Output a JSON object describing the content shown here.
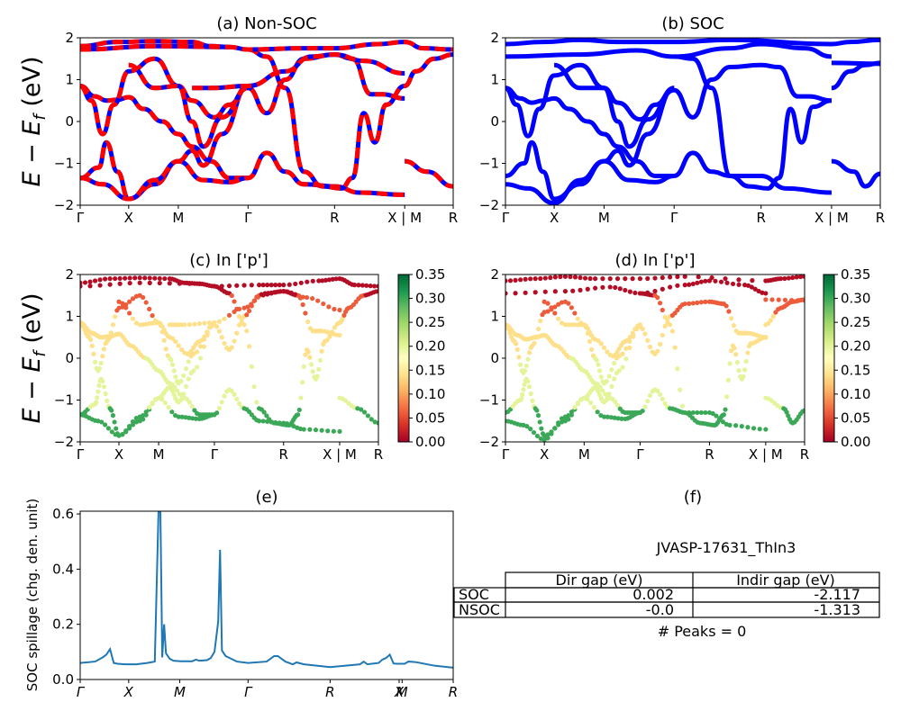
{
  "chart_data": [
    {
      "id": "a",
      "type": "line",
      "title": "(a) Non-SOC",
      "ylabel": "E − E_f (eV)",
      "ylim": [
        -2,
        2
      ],
      "yticks": [
        "−2",
        "−1",
        "0",
        "1",
        "2"
      ],
      "xticks": [
        "Γ",
        "X",
        "M",
        "Γ",
        "R",
        "X | M",
        "R"
      ],
      "xtick_pos": [
        0,
        0.13,
        0.263,
        0.45,
        0.682,
        0.87,
        1.0
      ],
      "style": "red line with blue dashes (overlaid)",
      "colors": {
        "primary": "#ff0000",
        "dash": "#0000ff"
      },
      "bands": [
        [
          [
            0,
            0.85
          ],
          [
            0.04,
            0.6
          ],
          [
            0.07,
            0.5
          ],
          [
            0.1,
            0.52
          ],
          [
            0.13,
            0.58
          ],
          [
            0.17,
            0.3
          ],
          [
            0.22,
            0.0
          ],
          [
            0.263,
            -0.3
          ],
          [
            0.3,
            -0.6
          ],
          [
            0.35,
            -0.95
          ],
          [
            0.4,
            -1.35
          ],
          [
            0.45,
            -1.35
          ]
        ],
        [
          [
            0,
            0.85
          ],
          [
            0.03,
            0.5
          ],
          [
            0.06,
            -0.3
          ],
          [
            0.09,
            0.4
          ],
          [
            0.13,
            1.2
          ],
          [
            0.2,
            1.5
          ],
          [
            0.263,
            0.85
          ],
          [
            0.3,
            0.5
          ],
          [
            0.36,
            0.1
          ],
          [
            0.4,
            0.4
          ],
          [
            0.45,
            0.85
          ]
        ],
        [
          [
            0,
            -1.35
          ],
          [
            0.05,
            -1.1
          ],
          [
            0.07,
            -0.5
          ],
          [
            0.1,
            -1.2
          ],
          [
            0.13,
            -1.85
          ],
          [
            0.2,
            -1.5
          ],
          [
            0.263,
            -0.95
          ],
          [
            0.3,
            -0.7
          ],
          [
            0.33,
            -1.05
          ],
          [
            0.38,
            -0.3
          ],
          [
            0.45,
            0.85
          ]
        ],
        [
          [
            0,
            -1.35
          ],
          [
            0.06,
            -1.5
          ],
          [
            0.13,
            -1.85
          ],
          [
            0.2,
            -1.4
          ],
          [
            0.263,
            -0.95
          ],
          [
            0.33,
            -1.4
          ],
          [
            0.4,
            -1.45
          ],
          [
            0.45,
            -1.35
          ],
          [
            0.5,
            -0.75
          ],
          [
            0.55,
            -1.2
          ],
          [
            0.6,
            -1.5
          ],
          [
            0.682,
            -1.55
          ],
          [
            0.75,
            -1.7
          ],
          [
            0.87,
            -1.75
          ]
        ],
        [
          [
            0.13,
            1.35
          ],
          [
            0.2,
            0.8
          ],
          [
            0.263,
            0.85
          ],
          [
            0.3,
            0.0
          ],
          [
            0.33,
            -0.6
          ],
          [
            0.38,
            0.1
          ],
          [
            0.45,
            0.8
          ],
          [
            0.5,
            0.2
          ],
          [
            0.55,
            1.0
          ],
          [
            0.6,
            1.5
          ],
          [
            0.682,
            1.6
          ],
          [
            0.73,
            1.5
          ],
          [
            0.78,
            0.65
          ],
          [
            0.81,
            0.65
          ],
          [
            0.87,
            0.55
          ]
        ],
        [
          [
            0.3,
            0.8
          ],
          [
            0.35,
            0.8
          ],
          [
            0.45,
            0.85
          ],
          [
            0.55,
            1.2
          ],
          [
            0.62,
            1.55
          ],
          [
            0.682,
            1.6
          ],
          [
            0.76,
            1.45
          ],
          [
            0.87,
            1.15
          ]
        ],
        [
          [
            0.45,
            1.72
          ],
          [
            0.5,
            1.55
          ],
          [
            0.55,
            0.8
          ],
          [
            0.6,
            -1.2
          ],
          [
            0.65,
            -1.55
          ],
          [
            0.7,
            -1.6
          ],
          [
            0.73,
            -1.35
          ],
          [
            0.76,
            0.2
          ],
          [
            0.79,
            -0.5
          ],
          [
            0.82,
            0.4
          ],
          [
            0.87,
            0.85
          ]
        ],
        [
          [
            0.87,
            0.85
          ],
          [
            0.9,
            1.2
          ],
          [
            0.95,
            1.5
          ],
          [
            1.0,
            1.6
          ]
        ],
        [
          [
            0.87,
            -0.95
          ],
          [
            0.93,
            -1.2
          ],
          [
            1.0,
            -1.55
          ]
        ],
        [
          [
            0.0,
            1.72
          ],
          [
            0.2,
            1.8
          ],
          [
            0.4,
            1.78
          ],
          [
            0.45,
            1.72
          ],
          [
            0.6,
            1.75
          ],
          [
            0.682,
            1.75
          ],
          [
            0.8,
            1.85
          ],
          [
            0.87,
            1.9
          ],
          [
            0.92,
            1.75
          ],
          [
            1.0,
            1.72
          ]
        ],
        [
          [
            0.0,
            1.8
          ],
          [
            0.1,
            1.9
          ],
          [
            0.2,
            1.92
          ],
          [
            0.3,
            1.9
          ],
          [
            0.35,
            1.8
          ],
          [
            0.4,
            1.78
          ]
        ]
      ]
    },
    {
      "id": "b",
      "type": "line",
      "title": "(b) SOC",
      "ylim": [
        -2,
        2
      ],
      "yticks": [
        "−2",
        "−1",
        "0",
        "1",
        "2"
      ],
      "xticks": [
        "Γ",
        "X",
        "M",
        "Γ",
        "R",
        "X | M",
        "R"
      ],
      "xtick_pos": [
        0,
        0.13,
        0.263,
        0.45,
        0.682,
        0.87,
        1.0
      ],
      "style": "blue thick lines",
      "colors": {
        "primary": "#0000ff"
      },
      "bands": [
        [
          [
            0,
            0.8
          ],
          [
            0.04,
            0.55
          ],
          [
            0.07,
            0.45
          ],
          [
            0.1,
            0.5
          ],
          [
            0.13,
            0.55
          ],
          [
            0.17,
            0.3
          ],
          [
            0.22,
            0.0
          ],
          [
            0.263,
            -0.3
          ],
          [
            0.3,
            -0.6
          ],
          [
            0.35,
            -0.95
          ],
          [
            0.4,
            -1.3
          ],
          [
            0.45,
            -1.3
          ]
        ],
        [
          [
            0,
            0.8
          ],
          [
            0.03,
            0.4
          ],
          [
            0.06,
            -0.35
          ],
          [
            0.09,
            0.3
          ],
          [
            0.13,
            1.1
          ],
          [
            0.2,
            1.35
          ],
          [
            0.263,
            0.8
          ],
          [
            0.3,
            0.45
          ],
          [
            0.36,
            0.05
          ],
          [
            0.4,
            0.4
          ],
          [
            0.45,
            0.8
          ]
        ],
        [
          [
            0,
            -1.3
          ],
          [
            0.05,
            -1.0
          ],
          [
            0.07,
            -0.5
          ],
          [
            0.1,
            -1.2
          ],
          [
            0.13,
            -1.85
          ],
          [
            0.2,
            -1.5
          ],
          [
            0.263,
            -0.95
          ],
          [
            0.3,
            -0.7
          ],
          [
            0.33,
            -1.05
          ],
          [
            0.38,
            -0.3
          ],
          [
            0.45,
            0.8
          ]
        ],
        [
          [
            0,
            -1.5
          ],
          [
            0.06,
            -1.6
          ],
          [
            0.13,
            -1.95
          ],
          [
            0.2,
            -1.4
          ],
          [
            0.263,
            -0.95
          ],
          [
            0.33,
            -1.4
          ],
          [
            0.4,
            -1.45
          ],
          [
            0.45,
            -1.3
          ],
          [
            0.5,
            -0.75
          ],
          [
            0.55,
            -1.2
          ],
          [
            0.6,
            -1.3
          ],
          [
            0.682,
            -1.3
          ],
          [
            0.75,
            -1.6
          ],
          [
            0.87,
            -1.7
          ]
        ],
        [
          [
            0.13,
            1.35
          ],
          [
            0.2,
            0.8
          ],
          [
            0.263,
            0.8
          ],
          [
            0.3,
            0.0
          ],
          [
            0.33,
            -0.6
          ],
          [
            0.38,
            0.05
          ],
          [
            0.45,
            0.75
          ],
          [
            0.5,
            0.1
          ],
          [
            0.55,
            1.0
          ],
          [
            0.6,
            1.3
          ],
          [
            0.682,
            1.35
          ],
          [
            0.73,
            1.3
          ],
          [
            0.78,
            0.6
          ],
          [
            0.81,
            0.6
          ],
          [
            0.87,
            0.5
          ]
        ],
        [
          [
            0.45,
            1.55
          ],
          [
            0.5,
            1.5
          ],
          [
            0.55,
            0.8
          ],
          [
            0.6,
            -1.3
          ],
          [
            0.65,
            -1.55
          ],
          [
            0.7,
            -1.6
          ],
          [
            0.73,
            -1.35
          ],
          [
            0.76,
            0.3
          ],
          [
            0.79,
            -0.5
          ],
          [
            0.82,
            0.35
          ],
          [
            0.87,
            0.5
          ]
        ],
        [
          [
            0.87,
            0.8
          ],
          [
            0.92,
            1.2
          ],
          [
            0.96,
            1.35
          ],
          [
            1.0,
            1.4
          ]
        ],
        [
          [
            0.87,
            -0.95
          ],
          [
            0.93,
            -1.2
          ],
          [
            0.96,
            -1.55
          ],
          [
            1.0,
            -1.25
          ]
        ],
        [
          [
            0.0,
            1.55
          ],
          [
            0.2,
            1.6
          ],
          [
            0.35,
            1.7
          ],
          [
            0.45,
            1.55
          ],
          [
            0.6,
            1.75
          ],
          [
            0.682,
            1.85
          ],
          [
            0.8,
            1.75
          ],
          [
            0.87,
            1.55
          ]
        ],
        [
          [
            0.0,
            1.85
          ],
          [
            0.1,
            1.9
          ],
          [
            0.2,
            1.95
          ],
          [
            0.3,
            1.9
          ],
          [
            0.45,
            1.9
          ],
          [
            0.6,
            1.95
          ],
          [
            0.87,
            1.85
          ],
          [
            0.92,
            1.9
          ],
          [
            1.0,
            1.95
          ]
        ],
        [
          [
            0.87,
            1.4
          ],
          [
            1.0,
            1.38
          ]
        ]
      ]
    },
    {
      "id": "c",
      "type": "scatter",
      "title": "(c)  In ['p']",
      "ylim": [
        -2,
        2
      ],
      "yticks": [
        "−2",
        "−1",
        "0",
        "1",
        "2"
      ],
      "xticks": [
        "Γ",
        "X",
        "M",
        "Γ",
        "R",
        "X | M",
        "R"
      ],
      "xtick_pos": [
        0,
        0.13,
        0.263,
        0.45,
        0.682,
        0.87,
        1.0
      ],
      "colormap": "RdYlGn",
      "clim": [
        0.0,
        0.35
      ],
      "colorbar_ticks": [
        "0.00",
        "0.05",
        "0.10",
        "0.15",
        "0.20",
        "0.25",
        "0.30",
        "0.35"
      ],
      "bands_ref": "a"
    },
    {
      "id": "d",
      "type": "scatter",
      "title": "(d) In ['p']",
      "ylim": [
        -2,
        2
      ],
      "yticks": [
        "−2",
        "−1",
        "0",
        "1",
        "2"
      ],
      "xticks": [
        "Γ",
        "X",
        "M",
        "Γ",
        "R",
        "X | M",
        "R"
      ],
      "xtick_pos": [
        0,
        0.13,
        0.263,
        0.45,
        0.682,
        0.87,
        1.0
      ],
      "colormap": "RdYlGn",
      "clim": [
        0.0,
        0.35
      ],
      "colorbar_ticks": [
        "0.00",
        "0.05",
        "0.10",
        "0.15",
        "0.20",
        "0.25",
        "0.30",
        "0.35"
      ],
      "bands_ref": "b"
    },
    {
      "id": "e",
      "type": "line",
      "title": "(e)",
      "ylabel": "SOC spillage (chg. den. unit)",
      "ylim": [
        0.0,
        0.61
      ],
      "yticks": [
        "0.0",
        "0.2",
        "0.4",
        "0.6"
      ],
      "xticks": [
        "Γ",
        "X",
        "M",
        "Γ",
        "R",
        "X",
        "M",
        "R"
      ],
      "xtick_pos": [
        0,
        0.13,
        0.267,
        0.45,
        0.67,
        0.855,
        0.863,
        1.0
      ],
      "color": "#1f77b4",
      "x": [
        0,
        0.04,
        0.06,
        0.07,
        0.08,
        0.09,
        0.1,
        0.12,
        0.15,
        0.18,
        0.2,
        0.21,
        0.215,
        0.22,
        0.225,
        0.23,
        0.24,
        0.25,
        0.27,
        0.3,
        0.31,
        0.32,
        0.34,
        0.35,
        0.36,
        0.37,
        0.375,
        0.38,
        0.39,
        0.42,
        0.45,
        0.5,
        0.52,
        0.53,
        0.55,
        0.57,
        0.58,
        0.6,
        0.67,
        0.75,
        0.76,
        0.77,
        0.8,
        0.81,
        0.82,
        0.83,
        0.84,
        0.85,
        0.87,
        0.88,
        0.9,
        0.95,
        1.0
      ],
      "y": [
        0.06,
        0.065,
        0.08,
        0.09,
        0.11,
        0.06,
        0.057,
        0.055,
        0.055,
        0.06,
        0.065,
        0.61,
        0.61,
        0.08,
        0.2,
        0.095,
        0.075,
        0.068,
        0.066,
        0.066,
        0.072,
        0.068,
        0.07,
        0.078,
        0.1,
        0.21,
        0.47,
        0.105,
        0.085,
        0.065,
        0.06,
        0.065,
        0.085,
        0.085,
        0.065,
        0.055,
        0.062,
        0.055,
        0.045,
        0.055,
        0.065,
        0.055,
        0.06,
        0.072,
        0.078,
        0.09,
        0.058,
        0.057,
        0.057,
        0.065,
        0.063,
        0.05,
        0.043
      ]
    }
  ],
  "panel_f": {
    "title": "(f)",
    "material": "JVASP-17631_ThIn3",
    "table": {
      "columns": [
        "",
        "Dir gap (eV)",
        "Indir gap (eV)"
      ],
      "rows": [
        [
          "SOC",
          "0.002",
          "-2.117"
        ],
        [
          "NSOC",
          "-0.0",
          "-1.313"
        ]
      ]
    },
    "peaks": "# Peaks = 0"
  },
  "labels": {
    "ylabel_band": "E − E",
    "ylabel_band_sub": "f",
    "ylabel_band_unit": " (eV)"
  }
}
